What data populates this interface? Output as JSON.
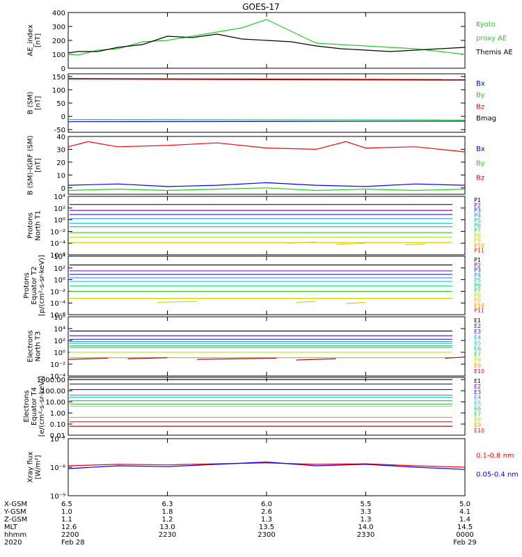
{
  "title": "GOES-17",
  "colors": {
    "p": [
      "#000000",
      "#6a00a8",
      "#1a1aff",
      "#1e90ff",
      "#00c8d2",
      "#00c87d",
      "#28d228",
      "#b4dc00",
      "#e6c800",
      "#ff9600",
      "#e61414",
      "#960000"
    ],
    "electrons": [
      "#000000",
      "#6a00a8",
      "#1a1aff",
      "#1e90ff",
      "#00c8d2",
      "#00c87d",
      "#28d228",
      "#b4dc00",
      "#ff9600",
      "#e61414",
      "#960000"
    ]
  },
  "chart_data": [
    {
      "type": "line",
      "ylabel": [
        "AE_index",
        "[nT]"
      ],
      "ylim": [
        0,
        400
      ],
      "yticks": [
        {
          "v": 0,
          "t": "0"
        },
        {
          "v": 100,
          "t": "100"
        },
        {
          "v": 200,
          "t": "200"
        },
        {
          "v": 300,
          "t": "300"
        },
        {
          "v": 400,
          "t": "400"
        }
      ],
      "legend": [
        {
          "text": "Kyoto",
          "color": "#22cc22"
        },
        {
          "text": "proxy AE",
          "color": "#22cc22"
        },
        {
          "text": "Themis AE",
          "color": "#000000"
        }
      ],
      "series": [
        {
          "name": "Kyoto proxy AE",
          "color": "#22cc22",
          "x": [
            0,
            0.1,
            0.3,
            0.5,
            0.75,
            1,
            1.25,
            1.5,
            1.75,
            2,
            2.25,
            2.5,
            2.75,
            3,
            3.25,
            3.5,
            3.75,
            4
          ],
          "y": [
            100,
            95,
            130,
            140,
            190,
            200,
            230,
            260,
            290,
            350,
            265,
            180,
            170,
            160,
            150,
            140,
            120,
            100
          ]
        },
        {
          "name": "Themis AE",
          "color": "#000000",
          "x": [
            0,
            0.1,
            0.3,
            0.5,
            0.75,
            1,
            1.25,
            1.5,
            1.75,
            2,
            2.25,
            2.5,
            2.75,
            3,
            3.25,
            3.5,
            3.75,
            4
          ],
          "y": [
            110,
            120,
            120,
            150,
            170,
            230,
            220,
            245,
            210,
            200,
            190,
            160,
            140,
            130,
            120,
            130,
            140,
            150
          ]
        }
      ]
    },
    {
      "type": "line",
      "ylabel": [
        "B (SM)",
        "[nT]"
      ],
      "ylim": [
        -60,
        160
      ],
      "yticks": [
        {
          "v": -50,
          "t": "-50"
        },
        {
          "v": 0,
          "t": "0"
        },
        {
          "v": 50,
          "t": "50"
        },
        {
          "v": 100,
          "t": "100"
        },
        {
          "v": 150,
          "t": "150"
        }
      ],
      "legend": [
        {
          "text": "Bx",
          "color": "#0000ff"
        },
        {
          "text": "By",
          "color": "#22cc22"
        },
        {
          "text": "Bz",
          "color": "#ff0000"
        },
        {
          "text": "Bmag",
          "color": "#000000"
        }
      ],
      "series": [
        {
          "name": "Bmag",
          "color": "#000000",
          "x": [
            0,
            4
          ],
          "y": [
            142,
            138
          ]
        },
        {
          "name": "Bz",
          "color": "#ff0000",
          "x": [
            0,
            4
          ],
          "y": [
            140,
            136
          ]
        },
        {
          "name": "By",
          "color": "#22cc22",
          "x": [
            0,
            4
          ],
          "y": [
            -12,
            -14
          ]
        },
        {
          "name": "Bx",
          "color": "#0000ff",
          "x": [
            0,
            4
          ],
          "y": [
            -20,
            -18
          ]
        }
      ]
    },
    {
      "type": "line",
      "ylabel": [
        "B (SM)-IGRF (SM)",
        "[nT]"
      ],
      "ylim": [
        -5,
        40
      ],
      "yticks": [
        {
          "v": 0,
          "t": "0"
        },
        {
          "v": 10,
          "t": "10"
        },
        {
          "v": 20,
          "t": "20"
        },
        {
          "v": 30,
          "t": "30"
        },
        {
          "v": 40,
          "t": "40"
        }
      ],
      "legend": [
        {
          "text": "Bx",
          "color": "#0000ff"
        },
        {
          "text": "By",
          "color": "#22cc22"
        },
        {
          "text": "Bz",
          "color": "#ff0000"
        }
      ],
      "series": [
        {
          "name": "Bz",
          "color": "#ff0000",
          "x": [
            0,
            0.2,
            0.5,
            1,
            1.5,
            2,
            2.5,
            2.8,
            3,
            3.5,
            4
          ],
          "y": [
            32,
            36,
            32,
            33,
            35,
            31,
            30,
            36,
            31,
            32,
            28
          ]
        },
        {
          "name": "Bx",
          "color": "#0000ff",
          "x": [
            0,
            0.5,
            1,
            1.5,
            2,
            2.5,
            3,
            3.5,
            4
          ],
          "y": [
            2,
            3,
            1,
            2,
            4,
            2,
            1,
            3,
            2
          ]
        },
        {
          "name": "By",
          "color": "#22cc22",
          "x": [
            0,
            0.5,
            1,
            1.5,
            2,
            2.5,
            3,
            3.5,
            4
          ],
          "y": [
            -2,
            -1,
            -2,
            -1,
            0,
            -2,
            -1,
            -2,
            -1
          ]
        }
      ]
    },
    {
      "type": "line",
      "log": true,
      "ylabel": [
        "Protons",
        "North T1"
      ],
      "ylim": [
        -6,
        4
      ],
      "yticks": [
        {
          "v": 4,
          "t": "10⁴"
        },
        {
          "v": 2,
          "t": "10²"
        },
        {
          "v": 0,
          "t": "10⁰"
        },
        {
          "v": -2,
          "t": "10⁻²"
        },
        {
          "v": -4,
          "t": "10⁻⁴"
        },
        {
          "v": -6,
          "t": "10⁻⁶"
        }
      ],
      "legend": [
        "P1",
        "P2",
        "P3",
        "P4",
        "P5",
        "P6",
        "P7",
        "P8",
        "P9",
        "P10",
        "P11"
      ],
      "levels": [
        2.6,
        1.6,
        0.9,
        0.2,
        -0.6,
        -1.2,
        -2.2,
        -3.0,
        -3.9
      ],
      "segments": [
        [
          2.2,
          2.5,
          -4.0
        ],
        [
          2.7,
          3.0,
          -4.2
        ],
        [
          3.4,
          3.6,
          -4.3
        ]
      ]
    },
    {
      "type": "line",
      "log": true,
      "ylabel": [
        "Protons",
        "Equator T2",
        "[p/(cm²-s-sr-keV)]"
      ],
      "ylim": [
        -6,
        4
      ],
      "yticks": [
        {
          "v": 4,
          "t": "10⁴"
        },
        {
          "v": 2,
          "t": "10²"
        },
        {
          "v": 0,
          "t": "10⁰"
        },
        {
          "v": -2,
          "t": "10⁻²"
        },
        {
          "v": -4,
          "t": "10⁻⁴"
        },
        {
          "v": -6,
          "t": "10⁻⁶"
        }
      ],
      "legend": [
        "P1",
        "P2",
        "P3",
        "P4",
        "P5",
        "P6",
        "P7",
        "P8",
        "P9",
        "P10",
        "P11"
      ],
      "levels": [
        2.5,
        1.5,
        0.9,
        0.3,
        -0.3,
        -1.1,
        -2.0,
        -3.2
      ],
      "segments": [
        [
          0.9,
          1.3,
          -3.9
        ],
        [
          2.3,
          2.5,
          -3.9
        ],
        [
          2.8,
          3.0,
          -4.1
        ]
      ]
    },
    {
      "type": "line",
      "log": true,
      "ylabel": [
        "Electrons",
        "North T3"
      ],
      "ylim": [
        -4,
        6
      ],
      "yticks": [
        {
          "v": 6,
          "t": "10⁶"
        },
        {
          "v": 4,
          "t": "10⁴"
        },
        {
          "v": 2,
          "t": "10²"
        },
        {
          "v": 0,
          "t": "10⁰"
        },
        {
          "v": -2,
          "t": "10⁻²"
        },
        {
          "v": -4,
          "t": "10⁻⁴"
        }
      ],
      "legend": [
        "E1",
        "E2",
        "E3",
        "E4",
        "E5",
        "E6",
        "E7",
        "E8",
        "E9",
        "E10"
      ],
      "levels": [
        3.6,
        2.8,
        2.2,
        1.8,
        1.5,
        1.1,
        0.8,
        0.0,
        -0.9
      ],
      "segments": [
        [
          0,
          0.4,
          -1.2
        ],
        [
          0.6,
          1.0,
          -1.1
        ],
        [
          1.3,
          2.1,
          -1.2
        ],
        [
          2.3,
          2.7,
          -1.3
        ],
        [
          3.8,
          4.0,
          -1.0
        ]
      ]
    },
    {
      "type": "line",
      "log": true,
      "ylabel": [
        "Electrons",
        "Equator T4",
        "[e/(cm²-s-sr-keV)]"
      ],
      "ylim": [
        -2,
        3.2
      ],
      "yticks": [
        {
          "v": 3,
          "t": "1000.00"
        },
        {
          "v": 2,
          "t": "100.00"
        },
        {
          "v": 1,
          "t": "10.00"
        },
        {
          "v": 0,
          "t": "1.00"
        },
        {
          "v": -1,
          "t": "0.10"
        },
        {
          "v": -2,
          "t": "0.01"
        }
      ],
      "legend": [
        "E1",
        "E2",
        "E3",
        "E4",
        "E5",
        "E6",
        "E7",
        "E8",
        "E9",
        "E10"
      ],
      "levels": [
        3.0,
        2.6,
        2.1,
        1.6,
        1.4,
        1.1,
        0.8,
        0.6,
        -0.4,
        -0.8,
        -1.2
      ]
    },
    {
      "type": "line",
      "log": true,
      "ylabel": [
        "Xray flux",
        "[W/m²]"
      ],
      "ylim": [
        -9,
        -7
      ],
      "yticks": [
        {
          "v": -7,
          "t": "10⁻⁷"
        },
        {
          "v": -8,
          "t": "10⁻⁸"
        },
        {
          "v": -9,
          "t": "10⁻⁹"
        }
      ],
      "legend": [
        {
          "text": "0.1-0.8 nm",
          "color": "#ff0000"
        },
        {
          "text": "0.05-0.4 nm",
          "color": "#0000ff"
        }
      ],
      "series": [
        {
          "name": "0.1-0.8 nm",
          "color": "#ff0000",
          "x": [
            0,
            0.5,
            1,
            1.5,
            2,
            2.5,
            3,
            3.5,
            4
          ],
          "y": [
            -7.95,
            -7.9,
            -7.92,
            -7.88,
            -7.85,
            -7.9,
            -7.88,
            -7.95,
            -8.0
          ]
        },
        {
          "name": "0.05-0.4 nm",
          "color": "#0000ff",
          "x": [
            0,
            0.5,
            1,
            1.5,
            2,
            2.5,
            3,
            3.5,
            4
          ],
          "y": [
            -8.05,
            -7.95,
            -7.98,
            -7.9,
            -7.82,
            -7.95,
            -7.9,
            -8.0,
            -8.08
          ]
        }
      ]
    }
  ],
  "axis_table": {
    "row_labels": [
      "X-GSM",
      "Y-GSM",
      "Z-GSM",
      "MLT",
      "hhmm",
      "2020"
    ],
    "columns": [
      {
        "values": [
          "6.5",
          "1.0",
          "1.1",
          "12.6",
          "2200",
          "Feb 28"
        ]
      },
      {
        "values": [
          "6.3",
          "1.8",
          "1.2",
          "13.0",
          "2230",
          ""
        ]
      },
      {
        "values": [
          "6.0",
          "2.6",
          "1.3",
          "13.5",
          "2300",
          ""
        ]
      },
      {
        "values": [
          "5.5",
          "3.3",
          "1.3",
          "14.0",
          "2330",
          ""
        ]
      },
      {
        "values": [
          "5.0",
          "4.1",
          "1.4",
          "14.5",
          "0000",
          "Feb 29"
        ]
      }
    ]
  }
}
